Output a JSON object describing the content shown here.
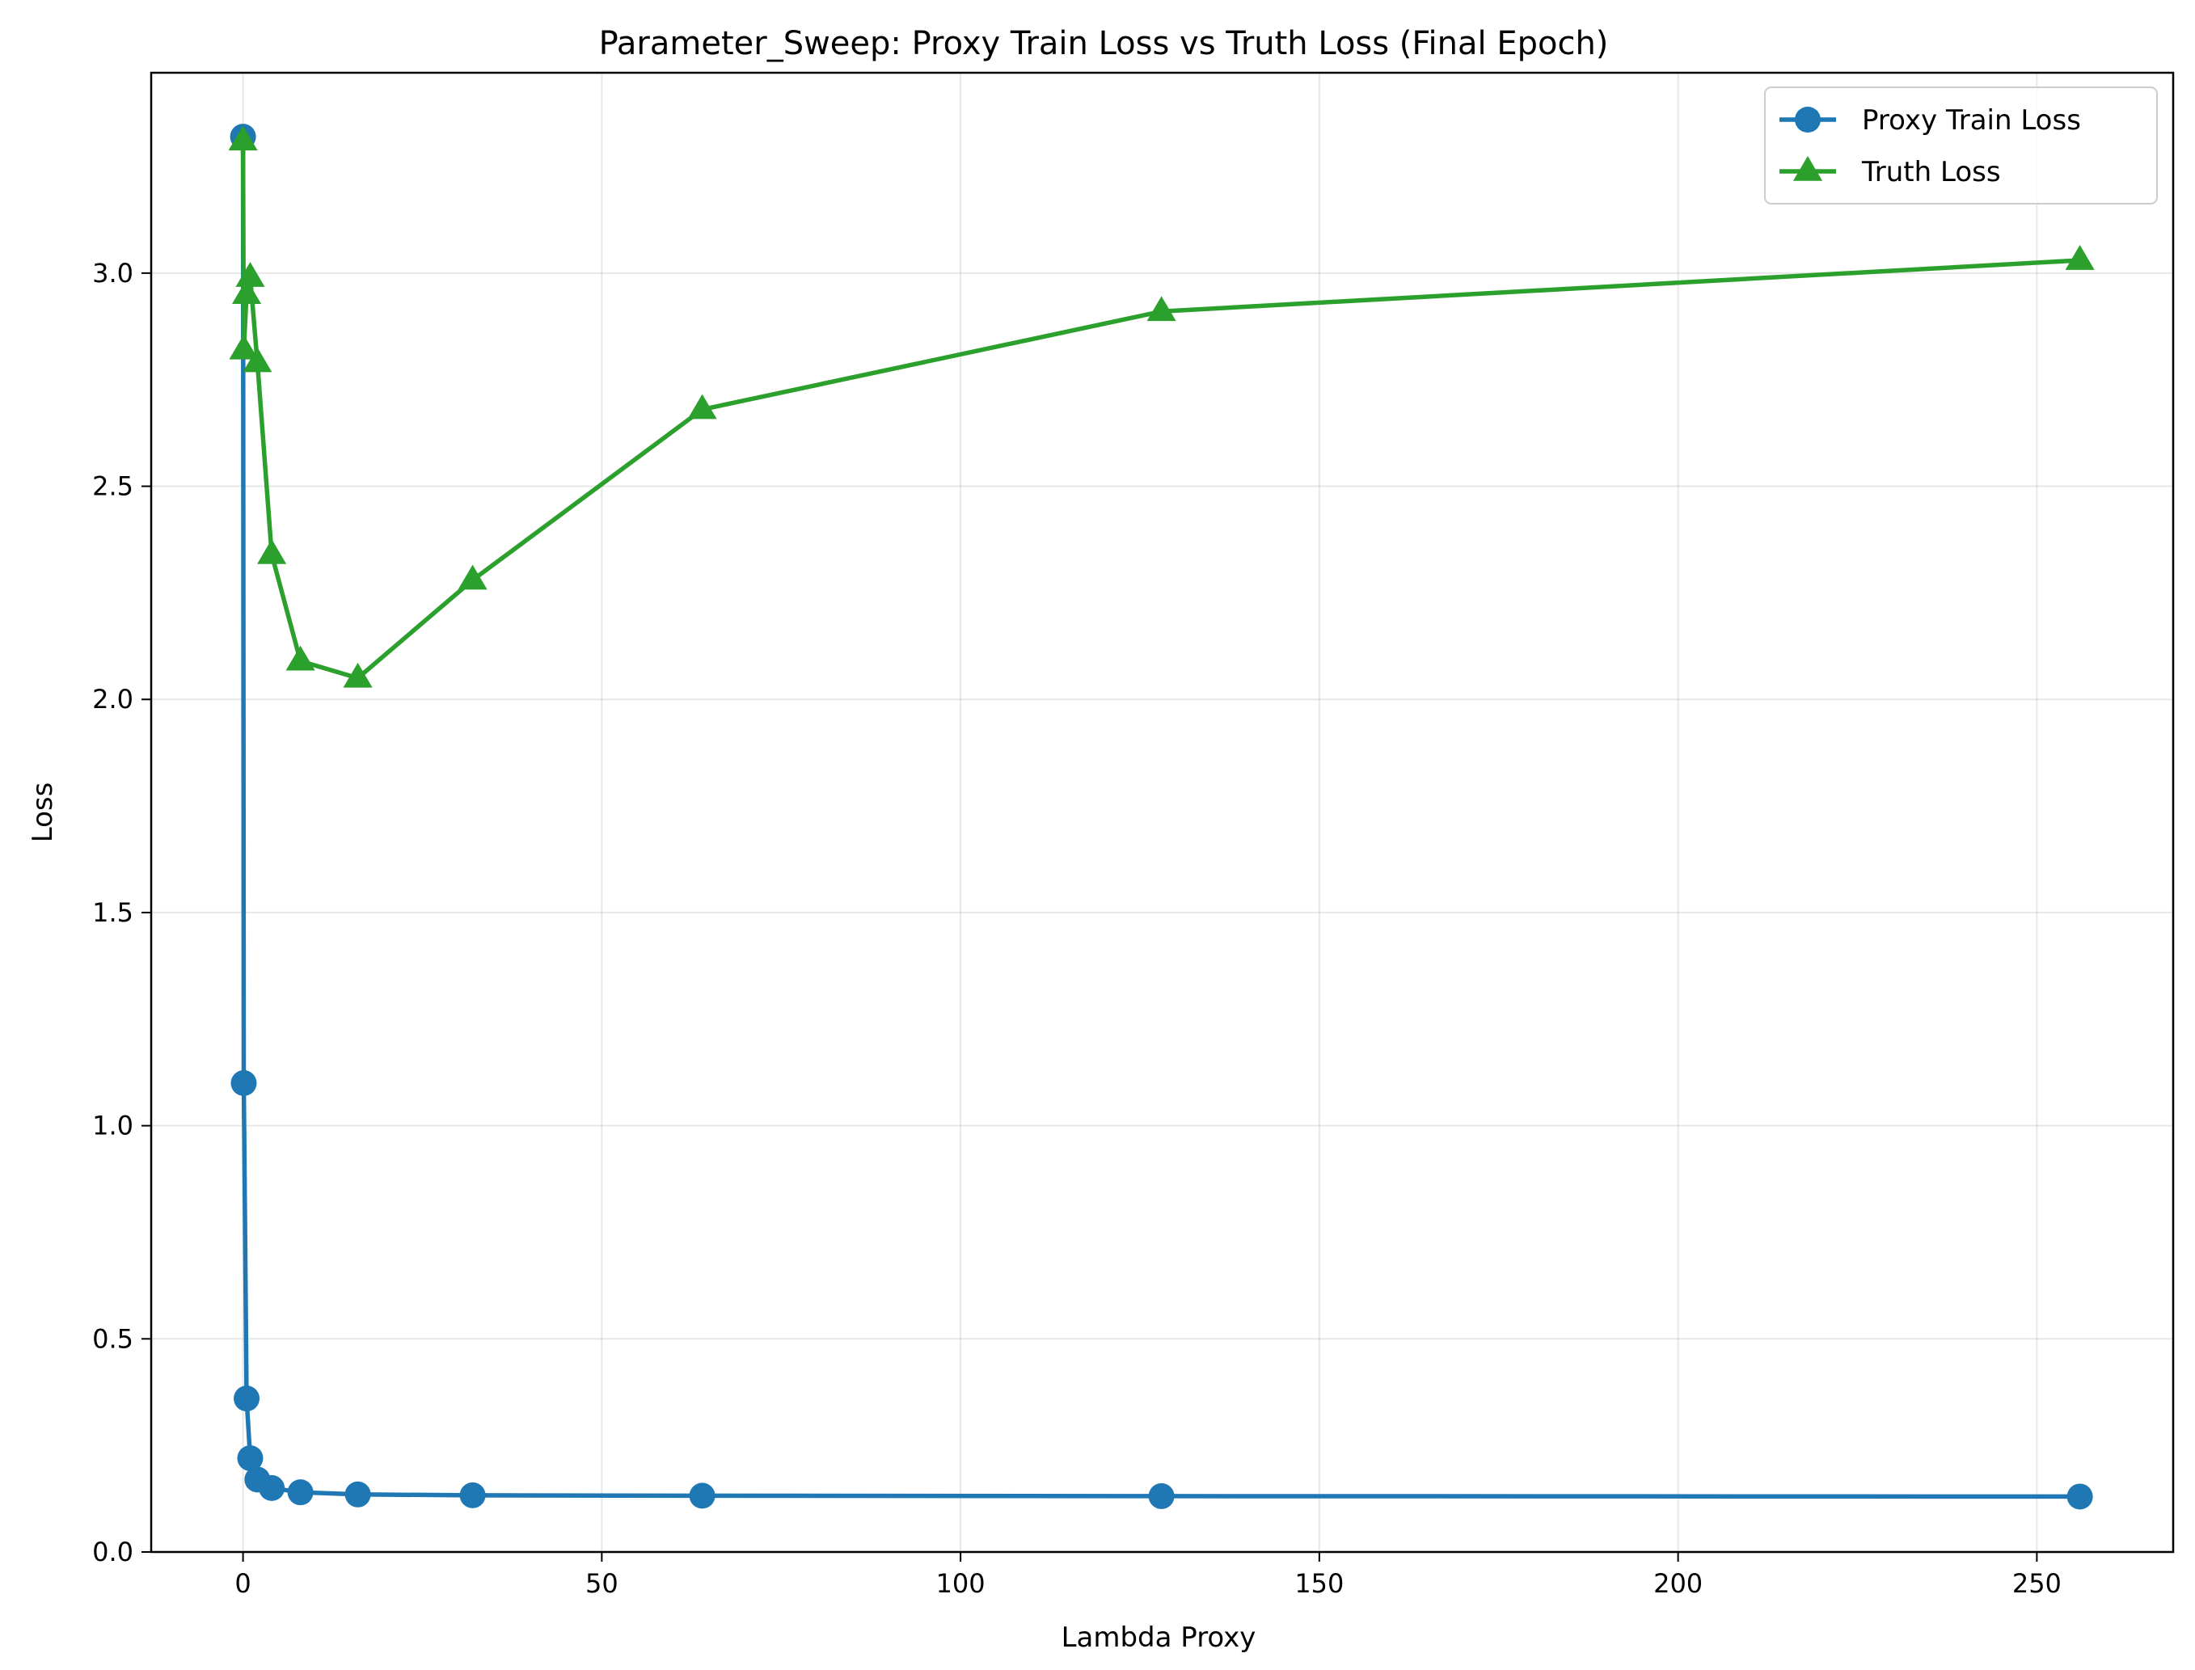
{
  "chart_data": {
    "type": "line",
    "title": "Parameter_Sweep: Proxy Train Loss vs Truth Loss (Final Epoch)",
    "xlabel": "Lambda Proxy",
    "ylabel": "Loss",
    "xlim": [
      -12.8,
      269.0
    ],
    "ylim": [
      -0.0,
      3.47
    ],
    "xticks": [
      0,
      50,
      100,
      150,
      200,
      250
    ],
    "xtick_labels": [
      "0",
      "50",
      "100",
      "150",
      "200",
      "250"
    ],
    "yticks": [
      0.0,
      0.5,
      1.0,
      1.5,
      2.0,
      2.5,
      3.0
    ],
    "ytick_labels": [
      "0.0",
      "0.5",
      "1.0",
      "1.5",
      "2.0",
      "2.5",
      "3.0"
    ],
    "grid": true,
    "legend_position": "top-right",
    "series": [
      {
        "name": "Proxy Train Loss",
        "color": "#1f77b4",
        "marker": "circle",
        "x": [
          0.0,
          0.1,
          0.5,
          1,
          2,
          4,
          8,
          16,
          32,
          64,
          128,
          256
        ],
        "y": [
          3.32,
          1.1,
          0.36,
          0.22,
          0.17,
          0.15,
          0.14,
          0.135,
          0.133,
          0.132,
          0.131,
          0.13
        ]
      },
      {
        "name": "Truth Loss",
        "color": "#2ca02c",
        "marker": "triangle",
        "x": [
          0.0,
          0.1,
          0.5,
          1,
          2,
          4,
          8,
          16,
          32,
          64,
          128,
          256
        ],
        "y": [
          3.31,
          2.82,
          2.95,
          2.99,
          2.79,
          2.34,
          2.09,
          2.05,
          2.28,
          2.68,
          2.91,
          3.03
        ]
      }
    ]
  }
}
